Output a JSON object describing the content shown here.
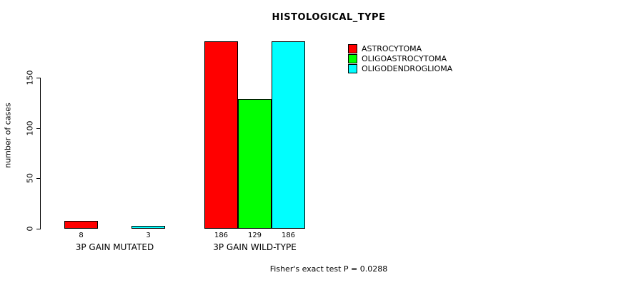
{
  "title": "HISTOLOGICAL_TYPE",
  "subtitle": "Fisher's exact test P = 0.0288",
  "ylabel": "number of cases",
  "chart_data": {
    "type": "bar",
    "categories": [
      "3P GAIN MUTATED",
      "3P GAIN WILD-TYPE"
    ],
    "series": [
      {
        "name": "ASTROCYTOMA",
        "color": "#ff0000",
        "values": [
          8,
          186
        ]
      },
      {
        "name": "OLIGOASTROCYTOMA",
        "color": "#00ff00",
        "values": [
          0,
          129
        ]
      },
      {
        "name": "OLIGODENDROGLIOMA",
        "color": "#00ffff",
        "values": [
          3,
          186
        ]
      }
    ],
    "bar_labels": [
      [
        "8",
        "",
        "3"
      ],
      [
        "186",
        "129",
        "186"
      ]
    ],
    "yticks": [
      0,
      50,
      100,
      150
    ],
    "ylim": [
      0,
      190
    ],
    "grid": false,
    "legend_position": "right"
  }
}
